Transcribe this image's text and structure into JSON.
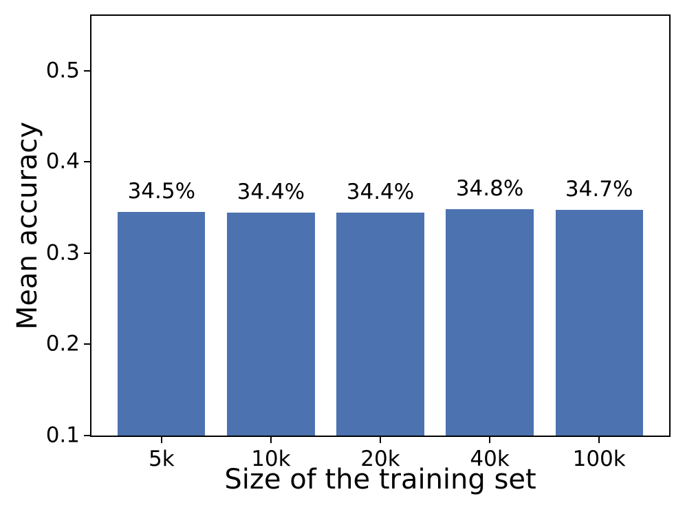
{
  "figure": {
    "background_color": "#ffffff",
    "text_color": "#000000"
  },
  "chart_data": {
    "type": "bar",
    "title": "",
    "xlabel": "Size of the training set",
    "ylabel": "Mean accuracy",
    "categories": [
      "5k",
      "10k",
      "20k",
      "40k",
      "100k"
    ],
    "values": [
      0.345,
      0.344,
      0.344,
      0.348,
      0.347
    ],
    "bar_labels": [
      "34.5%",
      "34.4%",
      "34.4%",
      "34.8%",
      "34.7%"
    ],
    "yticks": [
      0.1,
      0.2,
      0.3,
      0.4,
      0.5
    ],
    "ytick_labels": [
      "0.1",
      "0.2",
      "0.3",
      "0.4",
      "0.5"
    ],
    "ylim": [
      0.1,
      0.56
    ],
    "bar_color": "#4c72b0",
    "axis_color": "#000000",
    "grid": false,
    "legend": null
  }
}
